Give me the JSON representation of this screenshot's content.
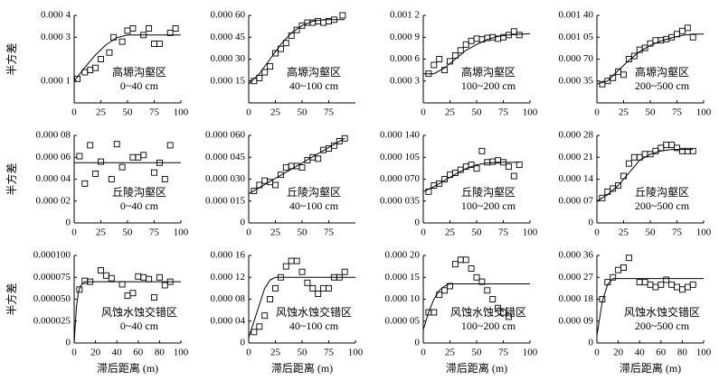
{
  "charts": [
    {
      "type": "scatter",
      "annotation": [
        "高塬沟壑区",
        "0~40 cm"
      ],
      "ylabel": "半方差",
      "xlim": [
        0,
        100
      ],
      "xticks": [
        0,
        25,
        50,
        75,
        100
      ],
      "ylim": [
        0,
        0.0004
      ],
      "yticks": [
        {
          "value": 0.0004,
          "label": "0.000 4"
        },
        {
          "value": 0.0003,
          "label": "0.000 3"
        },
        {
          "value": 0.0001,
          "label": "0.000 1"
        }
      ],
      "x": [
        3,
        10,
        15,
        20,
        25,
        33,
        37,
        45,
        50,
        55,
        65,
        70,
        75,
        80,
        90,
        95
      ],
      "values": [
        0.00011,
        0.00014,
        0.00015,
        0.00016,
        0.0002,
        0.00023,
        0.0003,
        0.00028,
        0.00033,
        0.00034,
        0.00031,
        0.00034,
        0.00027,
        0.00027,
        0.00032,
        0.00034
      ],
      "fit_x": [
        0,
        10,
        20,
        30,
        40,
        50,
        60,
        70,
        80,
        90,
        100
      ],
      "fit_values": [
        0.0001,
        0.000162,
        0.000219,
        0.000266,
        0.000298,
        0.00031,
        0.00031,
        0.00031,
        0.00031,
        0.00031,
        0.00031
      ]
    },
    {
      "type": "scatter",
      "annotation": [
        "高塬沟壑区",
        "40~100 cm"
      ],
      "xlim": [
        0,
        100
      ],
      "xticks": [
        0,
        25,
        50,
        75
      ],
      "ylim": [
        0,
        0.0006
      ],
      "yticks": [
        {
          "value": 0.0006,
          "label": "0.000 60"
        },
        {
          "value": 0.00045,
          "label": "0.000 45"
        },
        {
          "value": 0.0003,
          "label": "0.000 30"
        },
        {
          "value": 0.00015,
          "label": "0.000 15"
        }
      ],
      "x": [
        5,
        10,
        15,
        20,
        25,
        30,
        35,
        40,
        45,
        50,
        55,
        60,
        65,
        70,
        75,
        80,
        88
      ],
      "values": [
        0.00015,
        0.00017,
        0.00021,
        0.00025,
        0.00034,
        0.00037,
        0.00041,
        0.00046,
        0.0005,
        0.00053,
        0.00055,
        0.00055,
        0.00056,
        0.00055,
        0.00056,
        0.00057,
        0.0006
      ],
      "fit_x": [
        0,
        10,
        20,
        30,
        40,
        50,
        60,
        70,
        80,
        90
      ],
      "fit_values": [
        0.00013,
        0.0002,
        0.0003,
        0.0004,
        0.00048,
        0.00053,
        0.00056,
        0.00057,
        0.00057,
        0.00057
      ]
    },
    {
      "type": "scatter",
      "annotation": [
        "高塬沟壑区",
        "100~200 cm"
      ],
      "xlim": [
        0,
        100
      ],
      "xticks": [
        0,
        25,
        50,
        75,
        100
      ],
      "ylim": [
        0,
        0.0012
      ],
      "yticks": [
        {
          "value": 0.0012,
          "label": "0.001 2"
        },
        {
          "value": 0.0009,
          "label": "0.000 9"
        },
        {
          "value": 0.0006,
          "label": "0.000 6"
        },
        {
          "value": 0.0003,
          "label": "0.000 3"
        }
      ],
      "x": [
        5,
        10,
        15,
        20,
        25,
        30,
        35,
        40,
        45,
        50,
        55,
        60,
        65,
        70,
        75,
        80,
        85,
        90
      ],
      "values": [
        0.0004,
        0.00052,
        0.0006,
        0.00045,
        0.00057,
        0.00065,
        0.00072,
        0.0008,
        0.00085,
        0.00088,
        0.00087,
        0.00089,
        0.0009,
        0.00088,
        0.0009,
        0.00093,
        0.00098,
        0.00093
      ],
      "fit_x": [
        0,
        10,
        20,
        30,
        40,
        50,
        60,
        70,
        80,
        90,
        100
      ],
      "fit_values": [
        0.0004,
        0.0004,
        0.00048,
        0.0006,
        0.00072,
        0.0008,
        0.00087,
        0.00091,
        0.00093,
        0.00094,
        0.00095
      ]
    },
    {
      "type": "scatter",
      "annotation": [
        "高塬沟壑区",
        "200~500 cm"
      ],
      "xlim": [
        0,
        100
      ],
      "xticks": [
        0,
        25,
        50,
        75,
        100
      ],
      "ylim": [
        0,
        0.0014
      ],
      "yticks": [
        {
          "value": 0.0014,
          "label": "0.001 40"
        },
        {
          "value": 0.00105,
          "label": "0.001 05"
        },
        {
          "value": 0.0007,
          "label": "0.000 70"
        },
        {
          "value": 0.00035,
          "label": "0.000 35"
        }
      ],
      "x": [
        5,
        10,
        15,
        20,
        25,
        30,
        35,
        40,
        45,
        50,
        55,
        60,
        65,
        70,
        75,
        80,
        85,
        90
      ],
      "values": [
        0.0003,
        0.00035,
        0.0004,
        0.0005,
        0.00045,
        0.0007,
        0.00075,
        0.00085,
        0.00088,
        0.00095,
        0.001,
        0.001,
        0.00102,
        0.00105,
        0.0011,
        0.00115,
        0.0012,
        0.00105
      ],
      "fit_x": [
        0,
        10,
        20,
        30,
        40,
        50,
        60,
        70,
        80,
        90,
        100
      ],
      "fit_values": [
        0.0003,
        0.00035,
        0.00052,
        0.00068,
        0.00082,
        0.00092,
        0.00099,
        0.00104,
        0.00108,
        0.0011,
        0.0011
      ]
    },
    {
      "type": "scatter",
      "annotation": [
        "丘陵沟壑区",
        "0~40 cm"
      ],
      "ylabel": "半方差",
      "xlim": [
        0,
        100
      ],
      "xticks": [
        0,
        25,
        50,
        75,
        100
      ],
      "ylim": [
        0,
        8e-05
      ],
      "yticks": [
        {
          "value": 8e-05,
          "label": "0.000 08"
        },
        {
          "value": 6e-05,
          "label": "0.000 06"
        },
        {
          "value": 4e-05,
          "label": "0.000 04"
        },
        {
          "value": 2e-05,
          "label": "0.000 02"
        },
        0
      ],
      "x": [
        5,
        10,
        15,
        20,
        25,
        35,
        40,
        45,
        55,
        60,
        65,
        75,
        80,
        85,
        90
      ],
      "values": [
        6.1e-05,
        3.6e-05,
        7.1e-05,
        4.5e-05,
        5.6e-05,
        4e-05,
        7.2e-05,
        5.1e-05,
        6e-05,
        6e-05,
        6.2e-05,
        4.6e-05,
        5.5e-05,
        4e-05,
        7.1e-05
      ],
      "fit_x": [
        0,
        100
      ],
      "fit_values": [
        5.5e-05,
        5.5e-05
      ]
    },
    {
      "type": "scatter",
      "annotation": [
        "丘陵沟壑区",
        "40~100 cm"
      ],
      "xlim": [
        0,
        100
      ],
      "xticks": [
        0,
        25,
        50,
        75
      ],
      "ylim": [
        0,
        6e-05
      ],
      "yticks": [
        {
          "value": 6e-05,
          "label": "0.000 060"
        },
        {
          "value": 4.5e-05,
          "label": "0.000 045"
        },
        {
          "value": 3e-05,
          "label": "0.000 030"
        },
        {
          "value": 1.5e-05,
          "label": "0.000 015"
        },
        0
      ],
      "x": [
        5,
        10,
        15,
        20,
        25,
        30,
        35,
        40,
        45,
        50,
        55,
        60,
        65,
        70,
        75,
        80,
        85,
        90
      ],
      "values": [
        2.2e-05,
        2.6e-05,
        2.9e-05,
        2.8e-05,
        2.6e-05,
        3.3e-05,
        3.8e-05,
        3.9e-05,
        3.9e-05,
        3.8e-05,
        4.3e-05,
        4.5e-05,
        4.4e-05,
        5e-05,
        5.1e-05,
        5.3e-05,
        5.6e-05,
        5.8e-05
      ],
      "fit_x": [
        0,
        90
      ],
      "fit_values": [
        2e-05,
        5.8e-05
      ]
    },
    {
      "type": "scatter",
      "annotation": [
        "丘陵沟壑区",
        "100~200 cm"
      ],
      "xlim": [
        0,
        100
      ],
      "xticks": [
        0,
        25,
        50,
        75,
        100
      ],
      "ylim": [
        0,
        0.00014
      ],
      "yticks": [
        {
          "value": 0.00014,
          "label": "0.000 140"
        },
        {
          "value": 0.000105,
          "label": "0.000 105"
        },
        {
          "value": 7e-05,
          "label": "0.000 070"
        },
        {
          "value": 3.5e-05,
          "label": "0.000 035"
        },
        0
      ],
      "x": [
        5,
        10,
        15,
        20,
        25,
        30,
        35,
        40,
        45,
        50,
        55,
        60,
        65,
        70,
        75,
        80,
        85,
        90
      ],
      "values": [
        5e-05,
        6e-05,
        6.3e-05,
        7e-05,
        7.7e-05,
        8e-05,
        8.5e-05,
        9e-05,
        9.3e-05,
        8.7e-05,
        0.000115,
        9.7e-05,
        9.8e-05,
        0.0001,
        9.7e-05,
        9e-05,
        7.5e-05,
        9.3e-05
      ],
      "fit_x": [
        0,
        10,
        20,
        30,
        40,
        50,
        60,
        70,
        80,
        90
      ],
      "fit_values": [
        5e-05,
        5.8e-05,
        6.8e-05,
        7.8e-05,
        8.7e-05,
        9.3e-05,
        9.6e-05,
        9.7e-05,
        9.7e-05,
        9.7e-05
      ]
    },
    {
      "type": "scatter",
      "annotation": [
        "丘陵沟壑区",
        "200~500 cm"
      ],
      "xlim": [
        0,
        100
      ],
      "xticks": [
        0,
        25,
        50,
        75,
        100
      ],
      "ylim": [
        0,
        0.00028
      ],
      "yticks": [
        {
          "value": 0.00028,
          "label": "0.000 28"
        },
        {
          "value": 0.00021,
          "label": "0.000 21"
        },
        {
          "value": 0.00014,
          "label": "0.000 14"
        },
        {
          "value": 7e-05,
          "label": "0.000 07"
        },
        0
      ],
      "x": [
        5,
        10,
        15,
        20,
        25,
        30,
        35,
        40,
        45,
        50,
        55,
        60,
        65,
        70,
        75,
        80,
        85,
        90
      ],
      "values": [
        8e-05,
        0.0001,
        0.00011,
        0.00012,
        0.00015,
        0.00019,
        0.00021,
        0.00021,
        0.00022,
        0.00022,
        0.00023,
        0.00024,
        0.00025,
        0.00025,
        0.00024,
        0.00023,
        0.00023,
        0.00023
      ],
      "fit_x": [
        0,
        10,
        20,
        30,
        40,
        50,
        60,
        70,
        80,
        90
      ],
      "fit_values": [
        7e-05,
        9e-05,
        0.00012,
        0.00016,
        0.0002,
        0.00022,
        0.00023,
        0.000235,
        0.000235,
        0.000235
      ]
    },
    {
      "type": "scatter",
      "annotation": [
        "风蚀水蚀交错区",
        "0~40 cm"
      ],
      "ylabel": "半方差",
      "xlabel": "滞后距离 (m)",
      "xlim": [
        0,
        100
      ],
      "xticks": [
        0,
        20,
        40,
        60,
        80,
        100
      ],
      "ylim": [
        0,
        0.0001
      ],
      "yticks": [
        {
          "value": 0.0001,
          "label": "0.000100"
        },
        {
          "value": 7.5e-05,
          "label": "0.000075"
        },
        {
          "value": 5e-05,
          "label": "0.000050"
        },
        {
          "value": 2.5e-05,
          "label": "0.000025"
        },
        0
      ],
      "x": [
        5,
        10,
        15,
        25,
        30,
        35,
        45,
        50,
        55,
        60,
        65,
        70,
        75,
        80,
        85,
        90
      ],
      "values": [
        6.1e-05,
        7.1e-05,
        7e-05,
        8.3e-05,
        7.7e-05,
        7.4e-05,
        6.7e-05,
        5.4e-05,
        5.7e-05,
        7.6e-05,
        7.5e-05,
        7.3e-05,
        5.2e-05,
        7.5e-05,
        6.6e-05,
        7e-05
      ],
      "fit_x": [
        0,
        2,
        4,
        6,
        8,
        10,
        100
      ],
      "fit_values": [
        0,
        4e-05,
        5.8e-05,
        6.5e-05,
        6.8e-05,
        7e-05,
        7e-05
      ]
    },
    {
      "type": "scatter",
      "annotation": [
        "风蚀水蚀交错区",
        "40~100 cm"
      ],
      "xlabel": "滞后距离 (m)",
      "xlim": [
        0,
        100
      ],
      "xticks": [
        0,
        25,
        50,
        75,
        100
      ],
      "ylim": [
        0,
        0.00016
      ],
      "yticks": [
        {
          "value": 0.00016,
          "label": "0.000 16"
        },
        {
          "value": 0.00012,
          "label": "0.000 12"
        },
        {
          "value": 8e-05,
          "label": "0.000 08"
        },
        {
          "value": 4e-05,
          "label": "0.000 04"
        },
        0
      ],
      "x": [
        5,
        10,
        15,
        20,
        25,
        30,
        35,
        40,
        45,
        50,
        55,
        60,
        65,
        70,
        75,
        80,
        85,
        90
      ],
      "values": [
        2e-05,
        3e-05,
        5e-05,
        8e-05,
        0.0001,
        0.00012,
        0.00014,
        0.00015,
        0.00015,
        0.00013,
        0.00011,
        0.0001,
        9e-05,
        0.0001,
        0.0001,
        0.00012,
        0.00012,
        0.00013
      ],
      "fit_x": [
        0,
        5,
        10,
        15,
        20,
        25,
        30,
        100
      ],
      "fit_values": [
        1e-05,
        4e-05,
        7e-05,
        0.0001,
        0.000115,
        0.00012,
        0.00012,
        0.00012
      ]
    },
    {
      "type": "scatter",
      "annotation": [
        "风蚀水蚀交错区",
        "100~200 cm"
      ],
      "xlabel": "滞后距离 (m)",
      "xlim": [
        0,
        100
      ],
      "xticks": [
        0,
        25,
        50,
        75,
        100
      ],
      "ylim": [
        0,
        0.0002
      ],
      "yticks": [
        {
          "value": 0.0002,
          "label": "0.000 20"
        },
        {
          "value": 0.00015,
          "label": "0.000 15"
        },
        {
          "value": 0.0001,
          "label": "0.000 10"
        },
        {
          "value": 5e-05,
          "label": "0.000 05"
        },
        0
      ],
      "x": [
        5,
        10,
        15,
        20,
        25,
        30,
        35,
        40,
        45,
        50,
        55,
        60,
        65,
        70,
        75,
        80
      ],
      "values": [
        7e-05,
        7e-05,
        0.00011,
        0.00012,
        0.00013,
        0.00018,
        0.00019,
        0.00019,
        0.00017,
        0.00015,
        0.00014,
        0.00012,
        0.0001,
        8e-05,
        7e-05,
        6e-05
      ],
      "fit_x": [
        0,
        5,
        10,
        15,
        20,
        25,
        100
      ],
      "fit_values": [
        3e-05,
        7e-05,
        0.0001,
        0.00012,
        0.00013,
        0.000135,
        0.000135
      ]
    },
    {
      "type": "scatter",
      "annotation": [
        "风蚀水蚀交错区",
        "200~500 cm"
      ],
      "xlabel": "滞后距离 (m)",
      "xlim": [
        0,
        100
      ],
      "xticks": [
        0,
        20,
        40,
        60,
        80,
        100
      ],
      "ylim": [
        0,
        0.00036
      ],
      "yticks": [
        {
          "value": 0.00036,
          "label": "0.000 36"
        },
        {
          "value": 0.00027,
          "label": "0.000 27"
        },
        {
          "value": 0.00018,
          "label": "0.000 18"
        },
        {
          "value": 9e-05,
          "label": "0.000 09"
        },
        0
      ],
      "x": [
        5,
        10,
        15,
        20,
        25,
        30,
        40,
        45,
        50,
        55,
        60,
        65,
        70,
        75,
        80,
        85,
        90
      ],
      "values": [
        0.00018,
        0.00025,
        0.00027,
        0.0003,
        0.00031,
        0.00035,
        0.00025,
        0.00025,
        0.00024,
        0.00023,
        0.00024,
        0.00026,
        0.00024,
        0.00023,
        0.00022,
        0.00023,
        0.00024
      ],
      "fit_x": [
        0,
        5,
        10,
        15,
        100
      ],
      "fit_values": [
        3e-05,
        0.00017,
        0.00024,
        0.000265,
        0.000265
      ]
    }
  ]
}
